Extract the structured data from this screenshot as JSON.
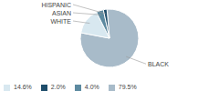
{
  "chart_data": {
    "type": "pie",
    "categories": [
      "BLACK",
      "WHITE",
      "ASIAN",
      "HISPANIC"
    ],
    "values": [
      79.5,
      14.6,
      4.0,
      2.0
    ],
    "value_labels": [
      "79.5%",
      "14.6%",
      "4.0%",
      "2.0%"
    ],
    "colors": [
      "#a8bbc9",
      "#d8e8f0",
      "#5d8aa0",
      "#1e4d6b"
    ],
    "legend": "lower left"
  }
}
